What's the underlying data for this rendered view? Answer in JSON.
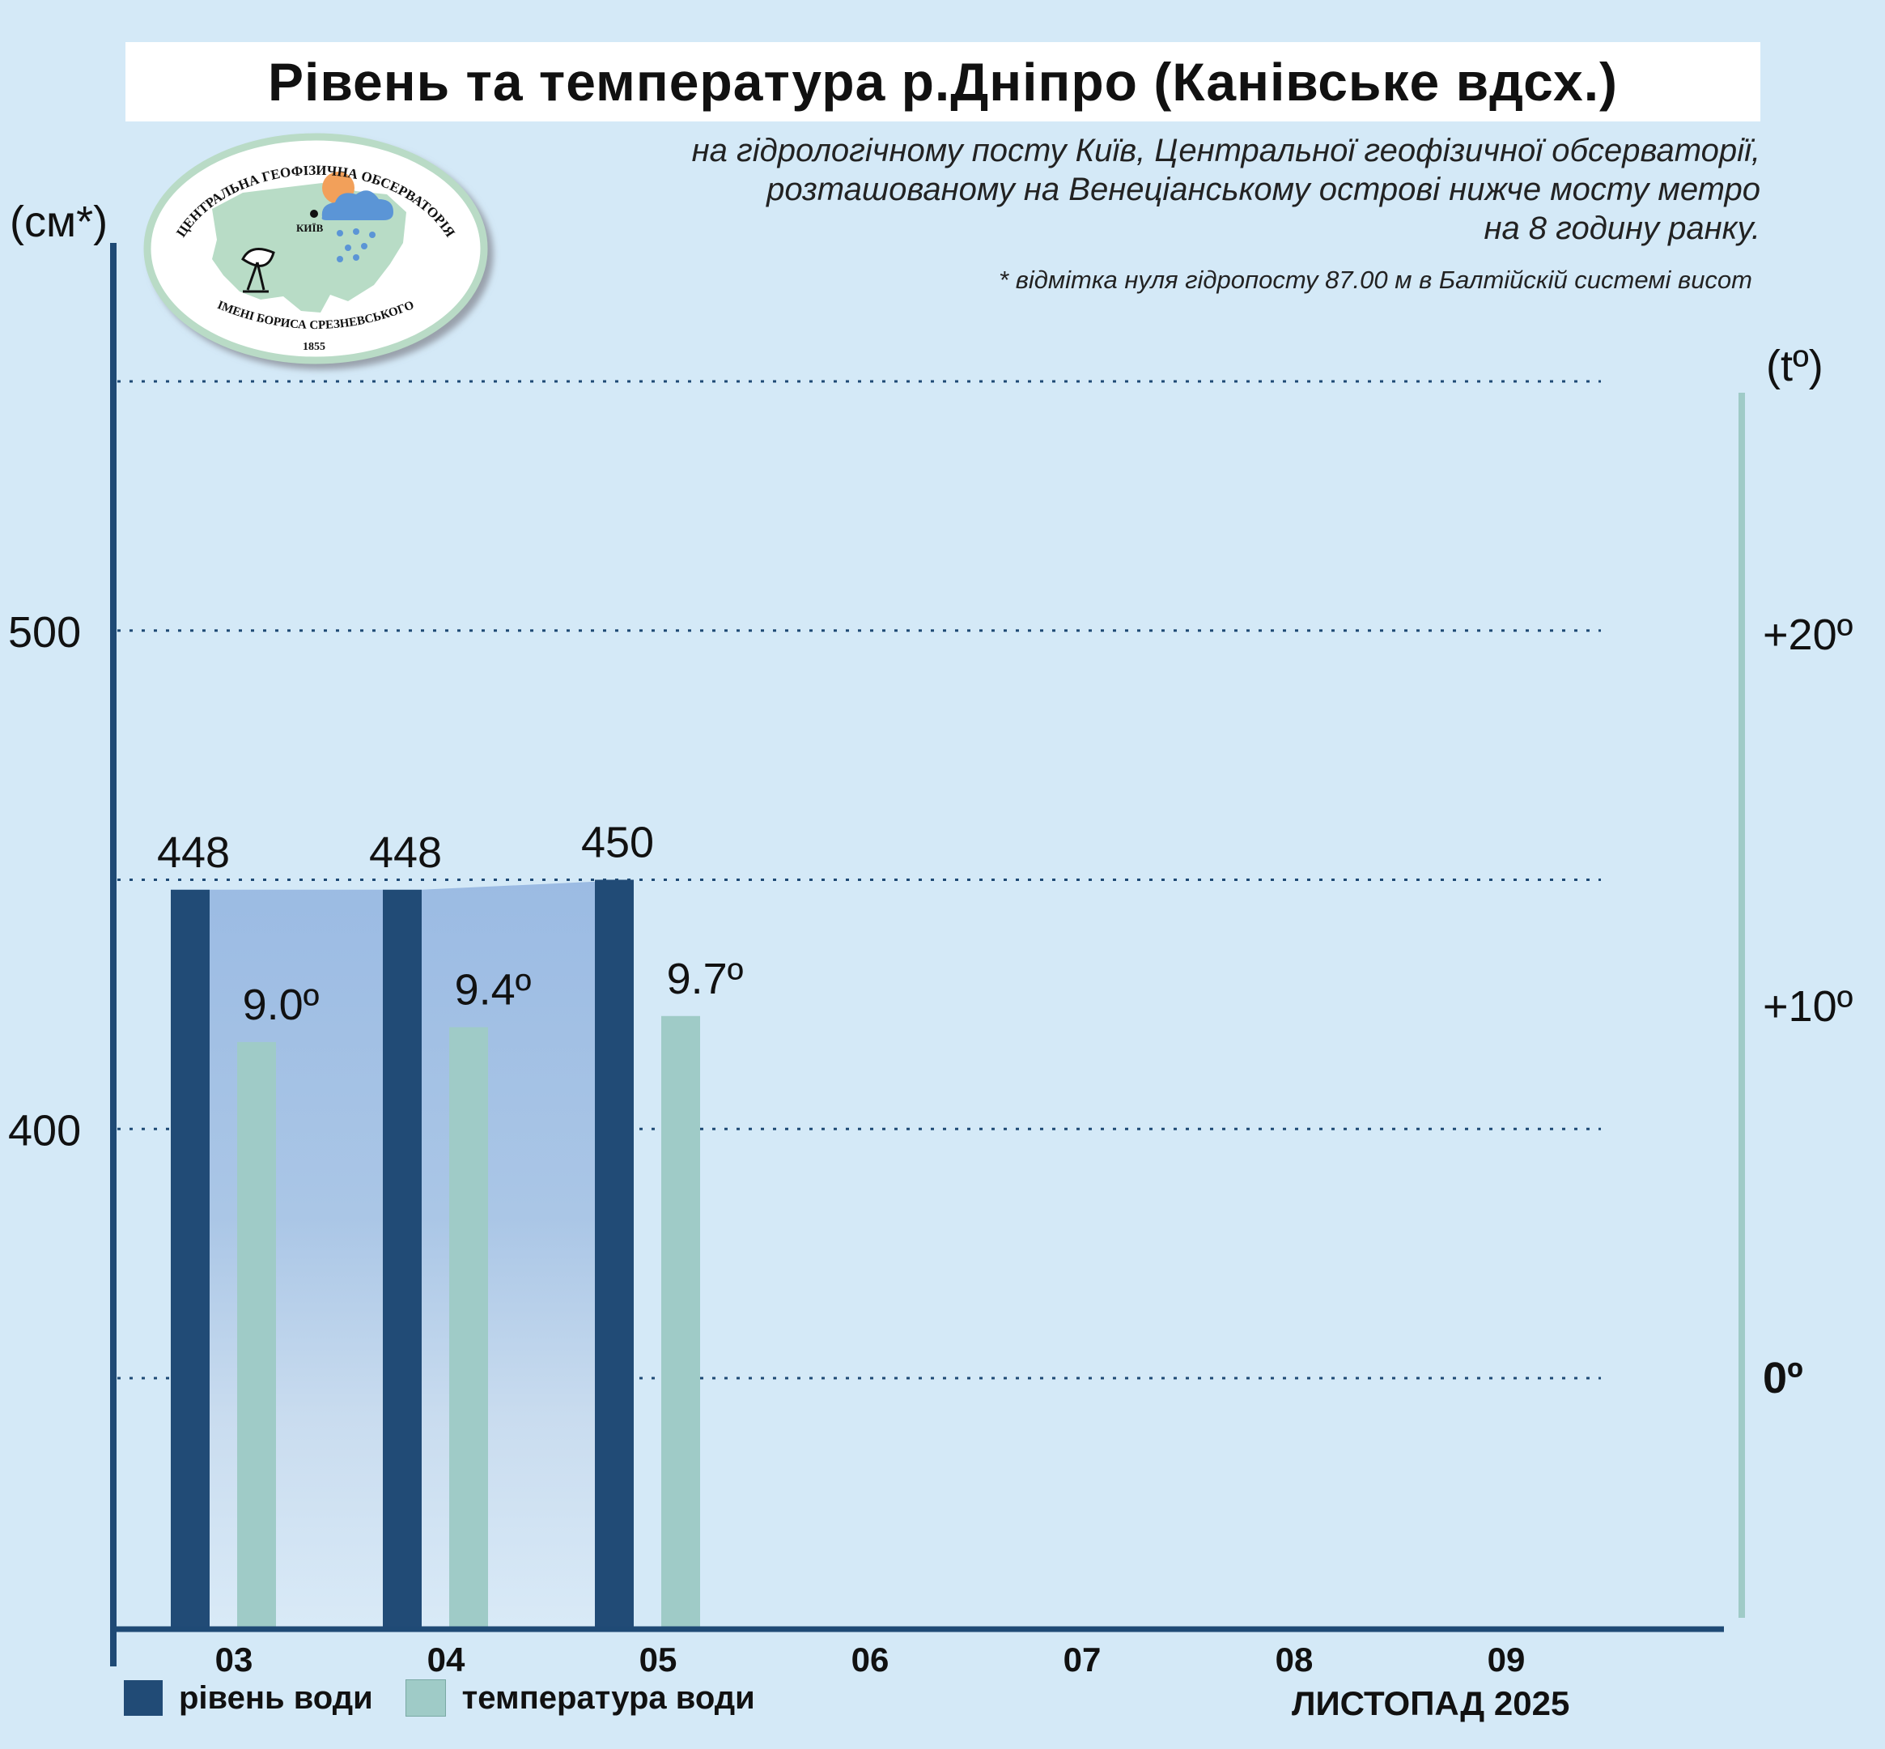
{
  "header": {
    "title": "Рівень та температура р.Дніпро (Канівське вдсх.)",
    "subtitle_lines": [
      "на гідрологічному посту Київ, Центральної геофізичної обсерваторії,",
      "розташованому на Венеціанському острові нижче мосту метро",
      "на 8 годину ранку."
    ],
    "footnote": "* відмітка нуля гідропосту 87.00 м в Балтійскій системі висот"
  },
  "logo": {
    "text_top": "ЦЕНТРАЛЬНА ГЕОФІЗИЧНА ОБСЕРВАТОРІЯ",
    "text_bottom": "ІМЕНІ БОРИСА СРЕЗНЕВСЬКОГО",
    "year": "1855",
    "city": "КИЇВ"
  },
  "legend": {
    "level": "рівень води",
    "temperature": "температура води"
  },
  "month_label": "ЛИСТОПАД 2025",
  "colors": {
    "background": "#d4e9f7",
    "level_bar": "#214b76",
    "temp_bar": "#9fcbc7",
    "area_top": "#9bbbe3",
    "axis": "#1f4a75",
    "temp_axis": "#9fcbc7",
    "grid": "#1f4a75"
  },
  "chart_data": {
    "type": "bar",
    "categories": [
      "03",
      "04",
      "05",
      "06",
      "07",
      "08",
      "09"
    ],
    "series": [
      {
        "name": "рівень води",
        "axis": "left",
        "values": [
          448,
          448,
          450,
          null,
          null,
          null,
          null
        ],
        "labels": [
          "448",
          "448",
          "450",
          "",
          "",
          "",
          ""
        ]
      },
      {
        "name": "температура води",
        "axis": "right",
        "values": [
          9.0,
          9.4,
          9.7,
          null,
          null,
          null,
          null
        ],
        "labels": [
          "9.0º",
          "9.4º",
          "9.7º",
          "",
          "",
          "",
          ""
        ]
      }
    ],
    "left_axis": {
      "label": "(см*)",
      "range": [
        350,
        550
      ],
      "ticks": [
        {
          "value": 500,
          "label": "500"
        },
        {
          "value": 400,
          "label": "400"
        }
      ],
      "gridlines": [
        550,
        500,
        450,
        400,
        350
      ]
    },
    "right_axis": {
      "label": "(tº)",
      "range": [
        -10,
        25
      ],
      "ticks": [
        {
          "value": 20,
          "label": "+20º"
        },
        {
          "value": 10,
          "label": "+10º"
        },
        {
          "value": 0,
          "label": "0º"
        }
      ]
    },
    "grid": true,
    "legend_position": "bottom-left"
  }
}
